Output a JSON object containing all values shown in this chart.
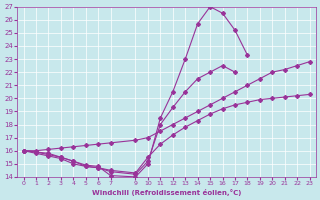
{
  "xlabel": "Windchill (Refroidissement éolien,°C)",
  "bg_color": "#c8e8ec",
  "line_color": "#993399",
  "grid_color": "#ffffff",
  "xlim": [
    -0.5,
    23.5
  ],
  "ylim": [
    14,
    27
  ],
  "xticks": [
    0,
    1,
    2,
    3,
    4,
    5,
    6,
    7,
    9,
    10,
    11,
    12,
    13,
    14,
    15,
    16,
    17,
    18,
    19,
    20,
    21,
    22,
    23
  ],
  "yticks": [
    14,
    15,
    16,
    17,
    18,
    19,
    20,
    21,
    22,
    23,
    24,
    25,
    26,
    27
  ],
  "lines": [
    {
      "x": [
        0,
        1,
        2,
        3,
        4,
        5,
        6,
        7,
        9,
        10,
        11,
        12,
        13,
        14,
        15,
        16,
        17,
        18,
        19,
        20,
        21,
        22,
        23
      ],
      "y": [
        16,
        15.9,
        15.8,
        15.5,
        15.2,
        14.9,
        14.8,
        14.1,
        14.0,
        15.0,
        18.5,
        20.5,
        23.0,
        25.7,
        27.0,
        26.5,
        25.2,
        23.3,
        null,
        null,
        null,
        null,
        null
      ]
    },
    {
      "x": [
        0,
        1,
        2,
        3,
        4,
        5,
        6,
        7,
        9,
        10,
        11,
        12,
        13,
        14,
        15,
        16,
        17,
        18,
        19,
        20,
        21,
        22,
        23
      ],
      "y": [
        16,
        15.8,
        15.6,
        15.4,
        15.0,
        14.8,
        14.7,
        14.4,
        14.2,
        15.2,
        18.0,
        19.3,
        20.5,
        21.5,
        22.0,
        22.5,
        22.0,
        null,
        null,
        null,
        null,
        null,
        null
      ]
    },
    {
      "x": [
        0,
        1,
        2,
        3,
        4,
        5,
        6,
        7,
        9,
        10,
        11,
        12,
        13,
        14,
        15,
        16,
        17,
        18,
        19,
        20,
        21,
        22,
        23
      ],
      "y": [
        16,
        16.0,
        16.1,
        16.2,
        16.3,
        16.4,
        16.5,
        16.6,
        16.8,
        17.0,
        17.5,
        18.0,
        18.5,
        19.0,
        19.5,
        20.0,
        20.5,
        21.0,
        21.5,
        22.0,
        22.2,
        22.5,
        22.8
      ]
    },
    {
      "x": [
        0,
        1,
        2,
        3,
        4,
        5,
        6,
        7,
        9,
        10,
        11,
        12,
        13,
        14,
        15,
        16,
        17,
        18,
        19,
        20,
        21,
        22,
        23
      ],
      "y": [
        16,
        15.9,
        15.7,
        15.5,
        15.2,
        14.8,
        14.7,
        14.5,
        14.3,
        15.5,
        16.5,
        17.2,
        17.8,
        18.3,
        18.8,
        19.2,
        19.5,
        19.7,
        19.9,
        20.0,
        20.1,
        20.2,
        20.3
      ]
    }
  ]
}
